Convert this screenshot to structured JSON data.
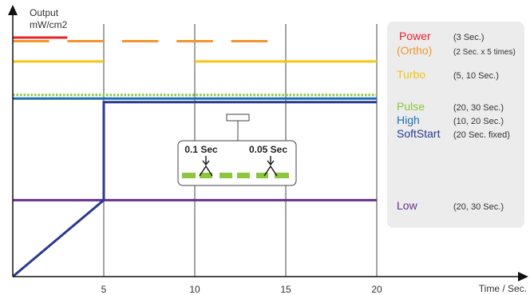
{
  "chart_data": {
    "type": "line",
    "y_axis_label": [
      "Output",
      "mW/cm2"
    ],
    "x_axis_label": "Time / Sec.",
    "x_ticks": [
      5,
      10,
      15,
      20
    ],
    "xlim": [
      0,
      28
    ],
    "grid": "vertical lines at 5, 10, 15, 20",
    "legend_placement": "right",
    "series": [
      {
        "key": "power",
        "name": "Power",
        "desc": "(3 Sec.)",
        "color": "#e8232a",
        "style": "solid",
        "y": 1.0,
        "x_segments": [
          [
            0,
            3
          ]
        ]
      },
      {
        "key": "ortho",
        "name": "(Ortho)",
        "desc": "(2 Sec. x 5 times)",
        "color": "#f0962d",
        "style": "dashed",
        "y": 0.985,
        "x_segments": [
          [
            0,
            2
          ],
          [
            3,
            5
          ],
          [
            6,
            8
          ],
          [
            9,
            11
          ],
          [
            12,
            14
          ]
        ]
      },
      {
        "key": "turbo",
        "name": "Turbo",
        "desc": "(5, 10 Sec.)",
        "color": "#f5c518",
        "style": "solid",
        "y": 0.9,
        "x_segments": [
          [
            0,
            5
          ],
          [
            10,
            20
          ]
        ]
      },
      {
        "key": "pulse",
        "name": "Pulse",
        "desc": "(20, 30 Sec.)",
        "color": "#8cc63f",
        "style": "dotted",
        "y": 0.76,
        "x_segments": [
          [
            0,
            20
          ]
        ]
      },
      {
        "key": "high",
        "name": "High",
        "desc": "(10, 20 Sec.)",
        "color": "#1f6fb5",
        "style": "solid",
        "y": 0.745,
        "x_segments": [
          [
            0,
            20
          ]
        ]
      },
      {
        "key": "softstart",
        "name": "SoftStart",
        "desc": "(20 Sec. fixed)",
        "color": "#2a3990",
        "style": "solid",
        "points": [
          [
            0,
            0
          ],
          [
            5,
            0.32
          ],
          [
            5,
            0.73
          ],
          [
            20,
            0.73
          ]
        ]
      },
      {
        "key": "low",
        "name": "Low",
        "desc": "(20, 30 Sec.)",
        "color": "#6a2e8e",
        "style": "solid",
        "y": 0.32,
        "x_segments": [
          [
            0,
            20
          ]
        ]
      }
    ],
    "annotations": {
      "pulse_on_label": "0.1 Sec",
      "pulse_off_label": "0.05 Sec"
    }
  },
  "colors": {
    "axis": "#111111",
    "grid": "#333333",
    "legend_bg": "#ececec",
    "callout_pulse": "#8cc63f"
  }
}
